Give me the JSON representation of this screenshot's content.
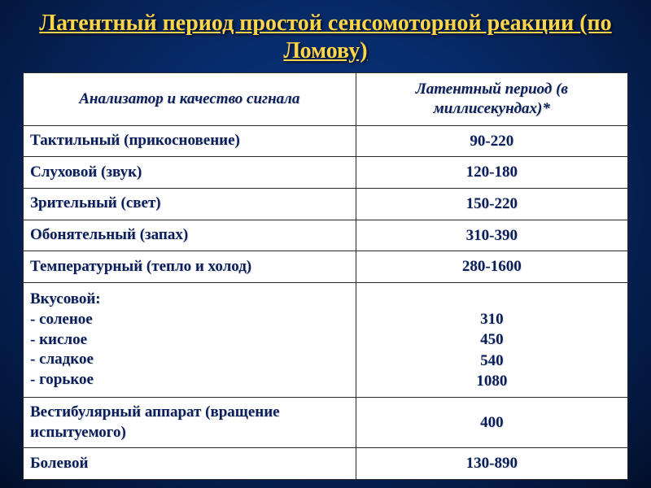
{
  "title": "Латентный период простой сенсомоторной реакции (по Ломову)",
  "colors": {
    "title": "#ffd54a",
    "text": "#0a1f5a",
    "border": "#2a2a2a",
    "table_bg": "#ffffff"
  },
  "table": {
    "type": "table",
    "column_widths_pct": [
      55,
      45
    ],
    "header_fontsize_pt": 15,
    "body_fontsize_pt": 15,
    "columns": [
      "Анализатор и качество сигнала",
      "Латентный период (в миллисекундах)*"
    ],
    "rows": [
      {
        "label": "Тактильный (прикосновение)",
        "value": "90-220"
      },
      {
        "label": "Слуховой (звук)",
        "value": "120-180"
      },
      {
        "label": "Зрительный (свет)",
        "value": "150-220"
      },
      {
        "label": "Обонятельный (запах)",
        "value": "310-390"
      },
      {
        "label": "Температурный (тепло и холод)",
        "value": "280-1600"
      },
      {
        "label": "Вкусовой:\n- соленое\n- кислое\n- сладкое\n- горькое",
        "value": "\n310\n450\n540\n1080"
      },
      {
        "label": "Вестибулярный аппарат (вращение испытуемого)",
        "value": "400"
      },
      {
        "label": "Болевой",
        "value": "130-890"
      }
    ]
  }
}
